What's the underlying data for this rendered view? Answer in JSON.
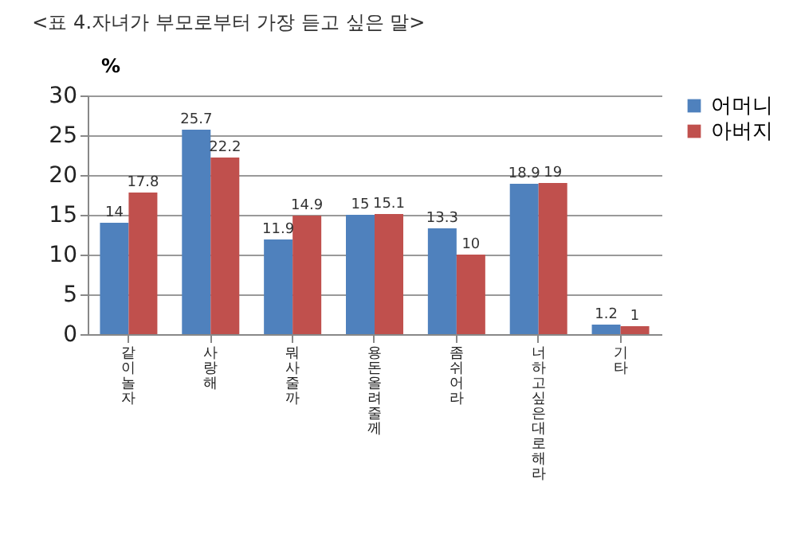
{
  "chart_data": {
    "type": "bar",
    "title": "<표 4.자녀가 부모로부터 가장 듣고 싶은 말>",
    "ylabel": "%",
    "categories": [
      "같이 놀자",
      "사랑해",
      "뭐 사줄까",
      "용돈 올려줄께",
      "좀 쉬어라",
      "너 하고 싶은대로 해라",
      "기타"
    ],
    "series": [
      {
        "name": "어머니",
        "color": "#4f81bd",
        "values": [
          14,
          25.7,
          11.9,
          15,
          13.3,
          18.9,
          1.2
        ]
      },
      {
        "name": "아버지",
        "color": "#c0504d",
        "values": [
          17.8,
          22.2,
          14.9,
          15.1,
          10,
          19,
          1
        ]
      }
    ],
    "ylim": [
      0,
      30
    ],
    "yticks": [
      0,
      5,
      10,
      15,
      20,
      25,
      30
    ],
    "grid": "y",
    "legend": "right",
    "data_labels": true
  }
}
